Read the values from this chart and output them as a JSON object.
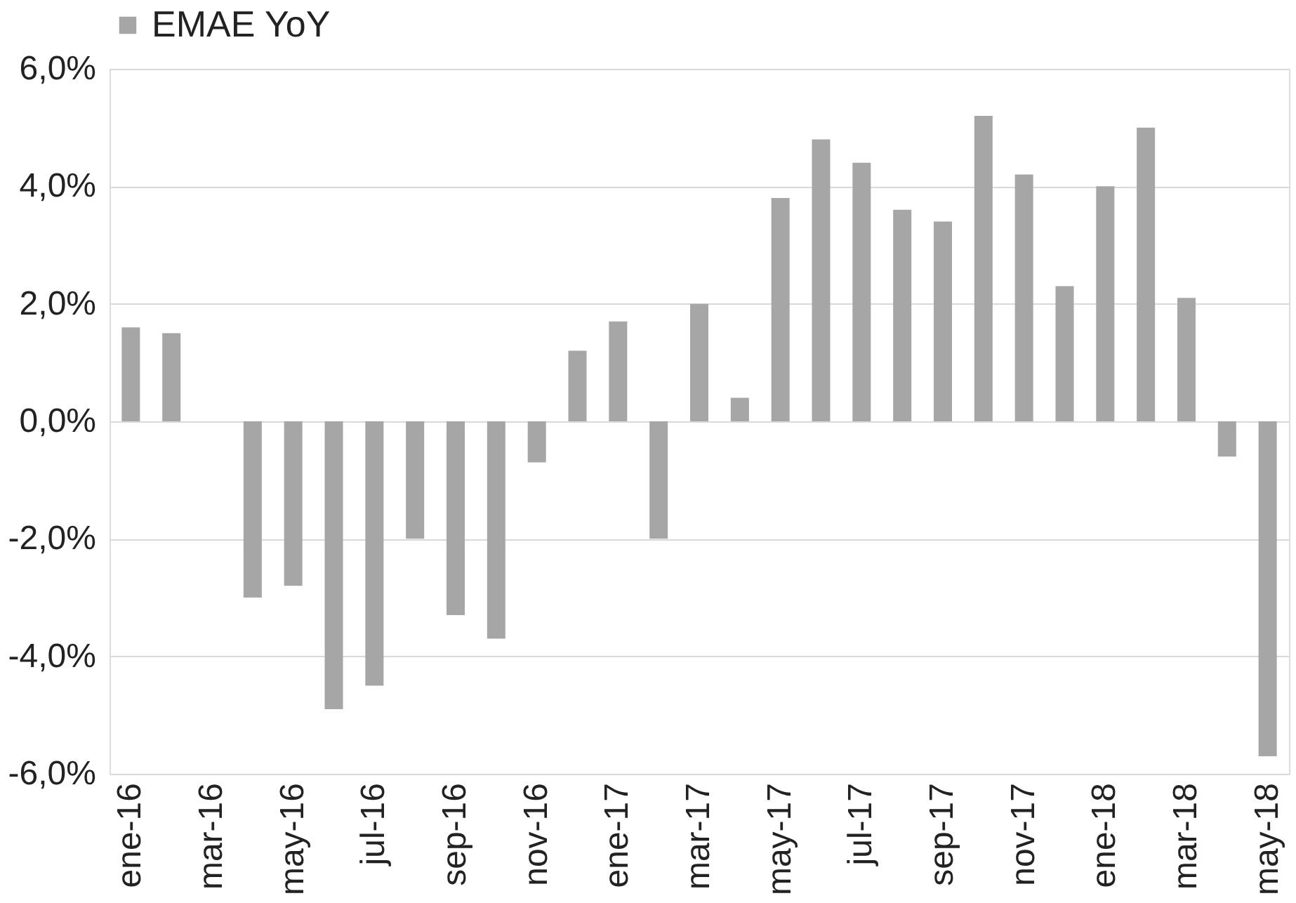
{
  "chart_data": {
    "type": "bar",
    "categories": [
      "ene-16",
      null,
      "mar-16",
      null,
      "may-16",
      null,
      "jul-16",
      null,
      "sep-16",
      null,
      "nov-16",
      null,
      "ene-17",
      null,
      "mar-17",
      null,
      "may-17",
      null,
      "jul-17",
      null,
      "sep-17",
      null,
      "nov-17",
      null,
      "ene-18",
      null,
      "mar-18",
      null,
      "may-18"
    ],
    "series": [
      {
        "name": "EMAE YoY",
        "color": "#a6a6a6",
        "values": [
          1.6,
          1.5,
          null,
          -3.0,
          -2.8,
          -4.9,
          -4.5,
          -2.0,
          -3.3,
          -3.7,
          -0.7,
          1.2,
          1.7,
          -2.0,
          2.0,
          0.4,
          3.8,
          4.8,
          4.4,
          3.6,
          3.4,
          5.2,
          4.2,
          2.3,
          4.0,
          5.0,
          2.1,
          -0.6,
          -5.7
        ]
      }
    ],
    "ylim": [
      -6,
      6
    ],
    "yticks": [
      {
        "value": -6,
        "label": "-6,0%"
      },
      {
        "value": -4,
        "label": "-4,0%"
      },
      {
        "value": -2,
        "label": "-2,0%"
      },
      {
        "value": 0,
        "label": "0,0%"
      },
      {
        "value": 2,
        "label": "2,0%"
      },
      {
        "value": 4,
        "label": "4,0%"
      },
      {
        "value": 6,
        "label": "6,0%"
      }
    ],
    "grid": "y",
    "legend": "top"
  }
}
